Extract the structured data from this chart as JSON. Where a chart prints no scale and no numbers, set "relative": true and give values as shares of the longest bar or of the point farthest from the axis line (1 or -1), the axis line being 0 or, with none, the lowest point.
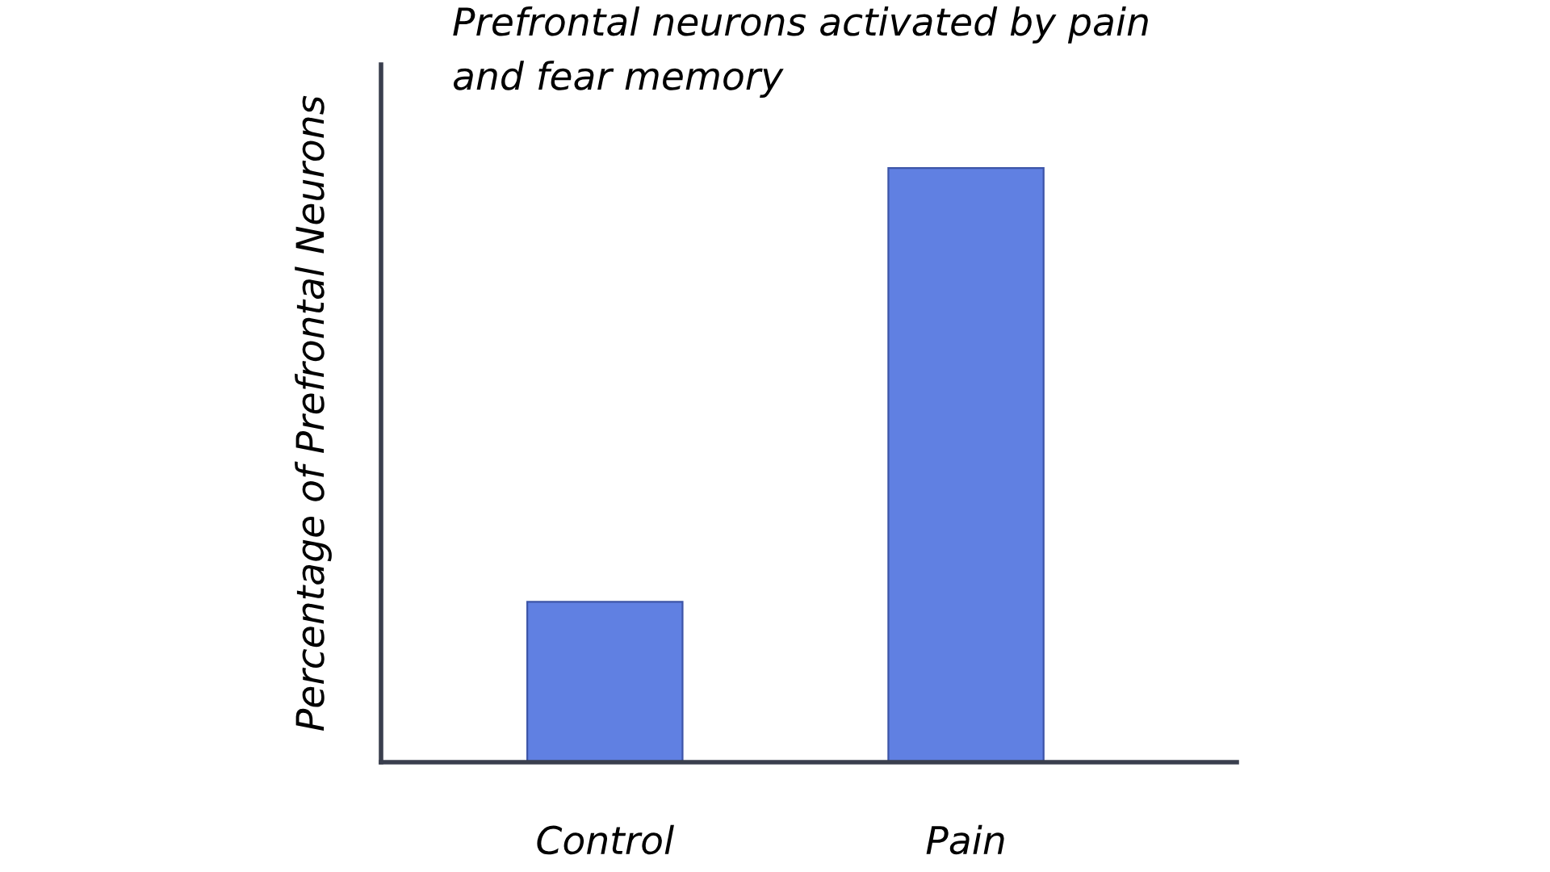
{
  "chart_data": {
    "type": "bar",
    "title": "Prefrontal neurons activated by pain\nand fear memory",
    "ylabel": "Percentage of Prefrontal Neurons",
    "categories": [
      "Control",
      "Pain"
    ],
    "values": [
      0.27,
      1
    ],
    "color": "#6080e2",
    "relative": true,
    "grid": false,
    "legend": false
  }
}
